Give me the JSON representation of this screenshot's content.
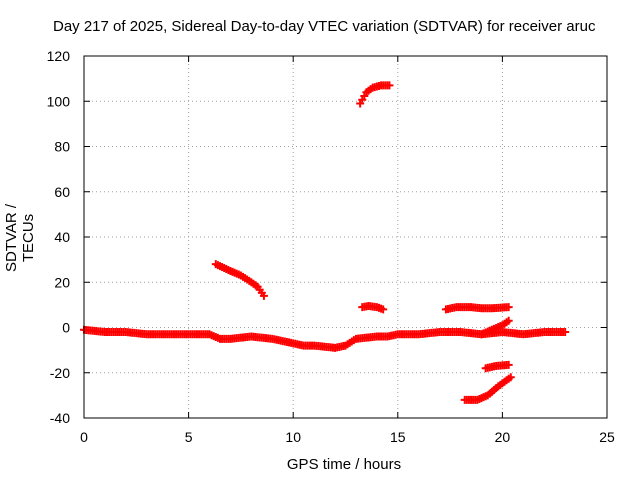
{
  "chart_data": {
    "type": "scatter",
    "title": "Day 217 of 2025, Sidereal Day-to-day VTEC variation (SDTVAR) for receiver aruc",
    "xlabel": "GPS time / hours",
    "ylabel": "SDTVAR / TECUs",
    "xlim": [
      0,
      25
    ],
    "ylim": [
      -40,
      120
    ],
    "xticks": [
      0,
      5,
      10,
      15,
      20,
      25
    ],
    "yticks": [
      -40,
      -20,
      0,
      20,
      40,
      60,
      80,
      100,
      120
    ],
    "grid": true,
    "marker": "plus",
    "color": "#ff0000",
    "series": [
      {
        "name": "main",
        "x": [
          0,
          1,
          2,
          3,
          4,
          5,
          6,
          6.5,
          7,
          8,
          9,
          10,
          10.5,
          11,
          12,
          12.5,
          13,
          14,
          14.5,
          15,
          16,
          17,
          18,
          19,
          20,
          21,
          22,
          23
        ],
        "y": [
          -1,
          -2,
          -2,
          -3,
          -3,
          -3,
          -3,
          -5,
          -5,
          -4,
          -5,
          -7,
          -8,
          -8,
          -9,
          -8,
          -5,
          -4,
          -4,
          -3,
          -3,
          -2,
          -2,
          -3,
          -2,
          -3,
          -2,
          -2
        ]
      },
      {
        "name": "arc-1",
        "x": [
          6.3,
          7,
          7.5,
          8,
          8.3,
          8.6
        ],
        "y": [
          28,
          25,
          23,
          20,
          18,
          14
        ]
      },
      {
        "name": "arc-2",
        "x": [
          13.2,
          13.5,
          13.8,
          14.2,
          14.6
        ],
        "y": [
          99,
          104,
          106,
          107,
          107
        ]
      },
      {
        "name": "arc-3",
        "x": [
          13.3,
          13.6,
          14,
          14.3
        ],
        "y": [
          9,
          9.5,
          9,
          8
        ]
      },
      {
        "name": "arc-4",
        "x": [
          17.3,
          17.8,
          18.5,
          19,
          19.5,
          20.3
        ],
        "y": [
          8,
          9,
          9,
          8.5,
          8.5,
          9
        ]
      },
      {
        "name": "arc-5",
        "x": [
          19.2,
          19.7,
          20.3
        ],
        "y": [
          -18,
          -17,
          -16.5
        ]
      },
      {
        "name": "arc-6",
        "x": [
          18.2,
          18.8,
          19.3,
          19.8,
          20.4
        ],
        "y": [
          -32,
          -32,
          -30,
          -26,
          -22
        ]
      },
      {
        "name": "arc-7",
        "x": [
          19,
          19.5,
          20,
          20.3
        ],
        "y": [
          -3,
          -1,
          1,
          3
        ]
      }
    ]
  }
}
